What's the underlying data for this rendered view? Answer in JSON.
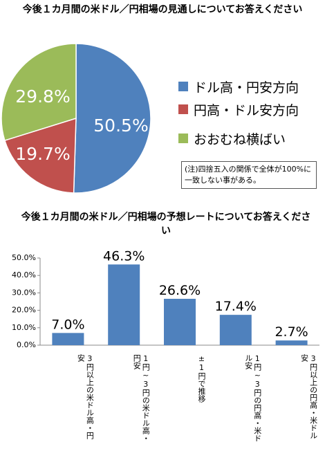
{
  "pie_title": "今後１カ月間の米ドル／円相場の見通しについてお答えください",
  "bar_title": "今後１カ月間の米ドル／円相場の予想レートについてお答えください",
  "note": "(注)四捨五入の関係で全体が100%に一致しない事がある。",
  "chart_data": [
    {
      "type": "pie",
      "title": "今後１カ月間の米ドル／円相場の見通しについてお答えください",
      "labels": [
        "ドル高・円安方向",
        "円高・ドル安方向",
        "おおむね横ばい"
      ],
      "values": [
        50.5,
        19.7,
        29.8
      ],
      "value_labels": [
        "50.5%",
        "19.7%",
        "29.8%"
      ],
      "colors": [
        "#4f81bd",
        "#c0504d",
        "#9bbb59"
      ],
      "legend": "right"
    },
    {
      "type": "bar",
      "title": "今後１カ月間の米ドル／円相場の予想レートについてお答えください",
      "categories": [
        "3円以上の米ドル高・円安",
        "1円~3円の米ドル高・円安",
        "±1円で推移",
        "1円~3円の円高・米ドル安",
        "3円以上の円高・米ドル安"
      ],
      "values": [
        7.0,
        46.3,
        26.6,
        17.4,
        2.7
      ],
      "value_labels": [
        "7.0%",
        "46.3%",
        "26.6%",
        "17.4%",
        "2.7%"
      ],
      "ylim": [
        0,
        50
      ],
      "yticks": [
        "0.0%",
        "10.0%",
        "20.0%",
        "30.0%",
        "40.0%",
        "50.0%"
      ],
      "color": "#4f81bd",
      "grid": false
    }
  ]
}
